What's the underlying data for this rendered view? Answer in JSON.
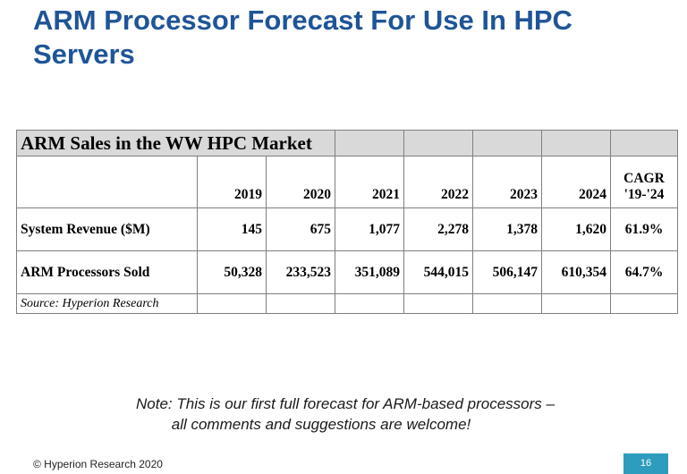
{
  "slide": {
    "title": "ARM Processor Forecast For Use In HPC Servers",
    "note_line1": "Note: This is our first full forecast for ARM-based processors –",
    "note_line2": "all comments and suggestions are welcome!",
    "footer": "© Hyperion Research 2020",
    "page_number": "16",
    "title_color": "#1f5597",
    "page_box_color": "#2e9dbd"
  },
  "table": {
    "caption": "ARM Sales in the WW HPC Market",
    "cagr_header_1": "CAGR",
    "cagr_header_2": "'19-'24",
    "years": [
      "2019",
      "2020",
      "2021",
      "2022",
      "2023",
      "2024"
    ],
    "rows": [
      {
        "label": "System Revenue ($M)",
        "values": [
          "145",
          "675",
          "1,077",
          "2,278",
          "1,378",
          "1,620"
        ],
        "cagr": "61.9%"
      },
      {
        "label": "ARM Processors Sold",
        "values": [
          "50,328",
          "233,523",
          "351,089",
          "544,015",
          "506,147",
          "610,354"
        ],
        "cagr": "64.7%"
      }
    ],
    "source": "Source: Hyperion Research",
    "header_fill": "#d9d9d9"
  }
}
